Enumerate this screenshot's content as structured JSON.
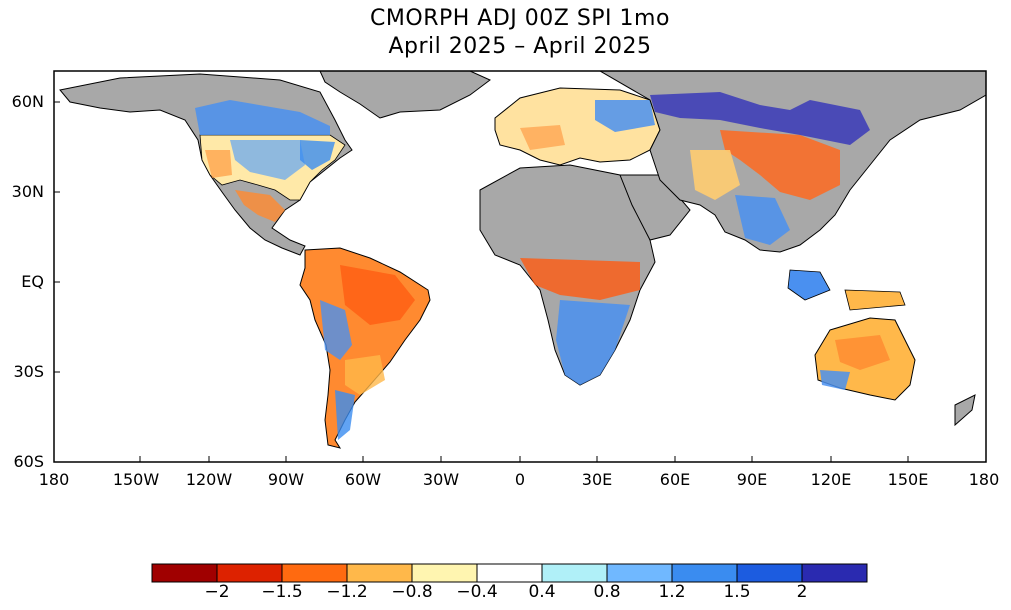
{
  "title": {
    "line1": "CMORPH ADJ 00Z SPI 1mo",
    "line2": "April 2025 – April 2025"
  },
  "axes": {
    "y_labels": [
      "60N",
      "30N",
      "EQ",
      "30S",
      "60S"
    ],
    "x_labels": [
      "180",
      "150W",
      "120W",
      "90W",
      "60W",
      "30W",
      "0",
      "30E",
      "60E",
      "90E",
      "120E",
      "150E",
      "180"
    ],
    "lat_range": [
      -60,
      70
    ],
    "lon_range": [
      -180,
      180
    ]
  },
  "colorbar": {
    "labels": [
      "−2",
      "−1.5",
      "−1.2",
      "−0.8",
      "−0.4",
      "0.4",
      "0.8",
      "1.2",
      "1.5",
      "2"
    ],
    "colors": [
      "#a00000",
      "#dd2200",
      "#ff6a10",
      "#ffb84a",
      "#fff5b0",
      "#ffffff",
      "#b0f0f8",
      "#70b8ff",
      "#3a8cf0",
      "#1c5ce0",
      "#2a2ab0"
    ]
  },
  "map": {
    "ocean_color": "#ffffff",
    "no_data_color": "#a8a8a8",
    "border_color": "#000000"
  }
}
